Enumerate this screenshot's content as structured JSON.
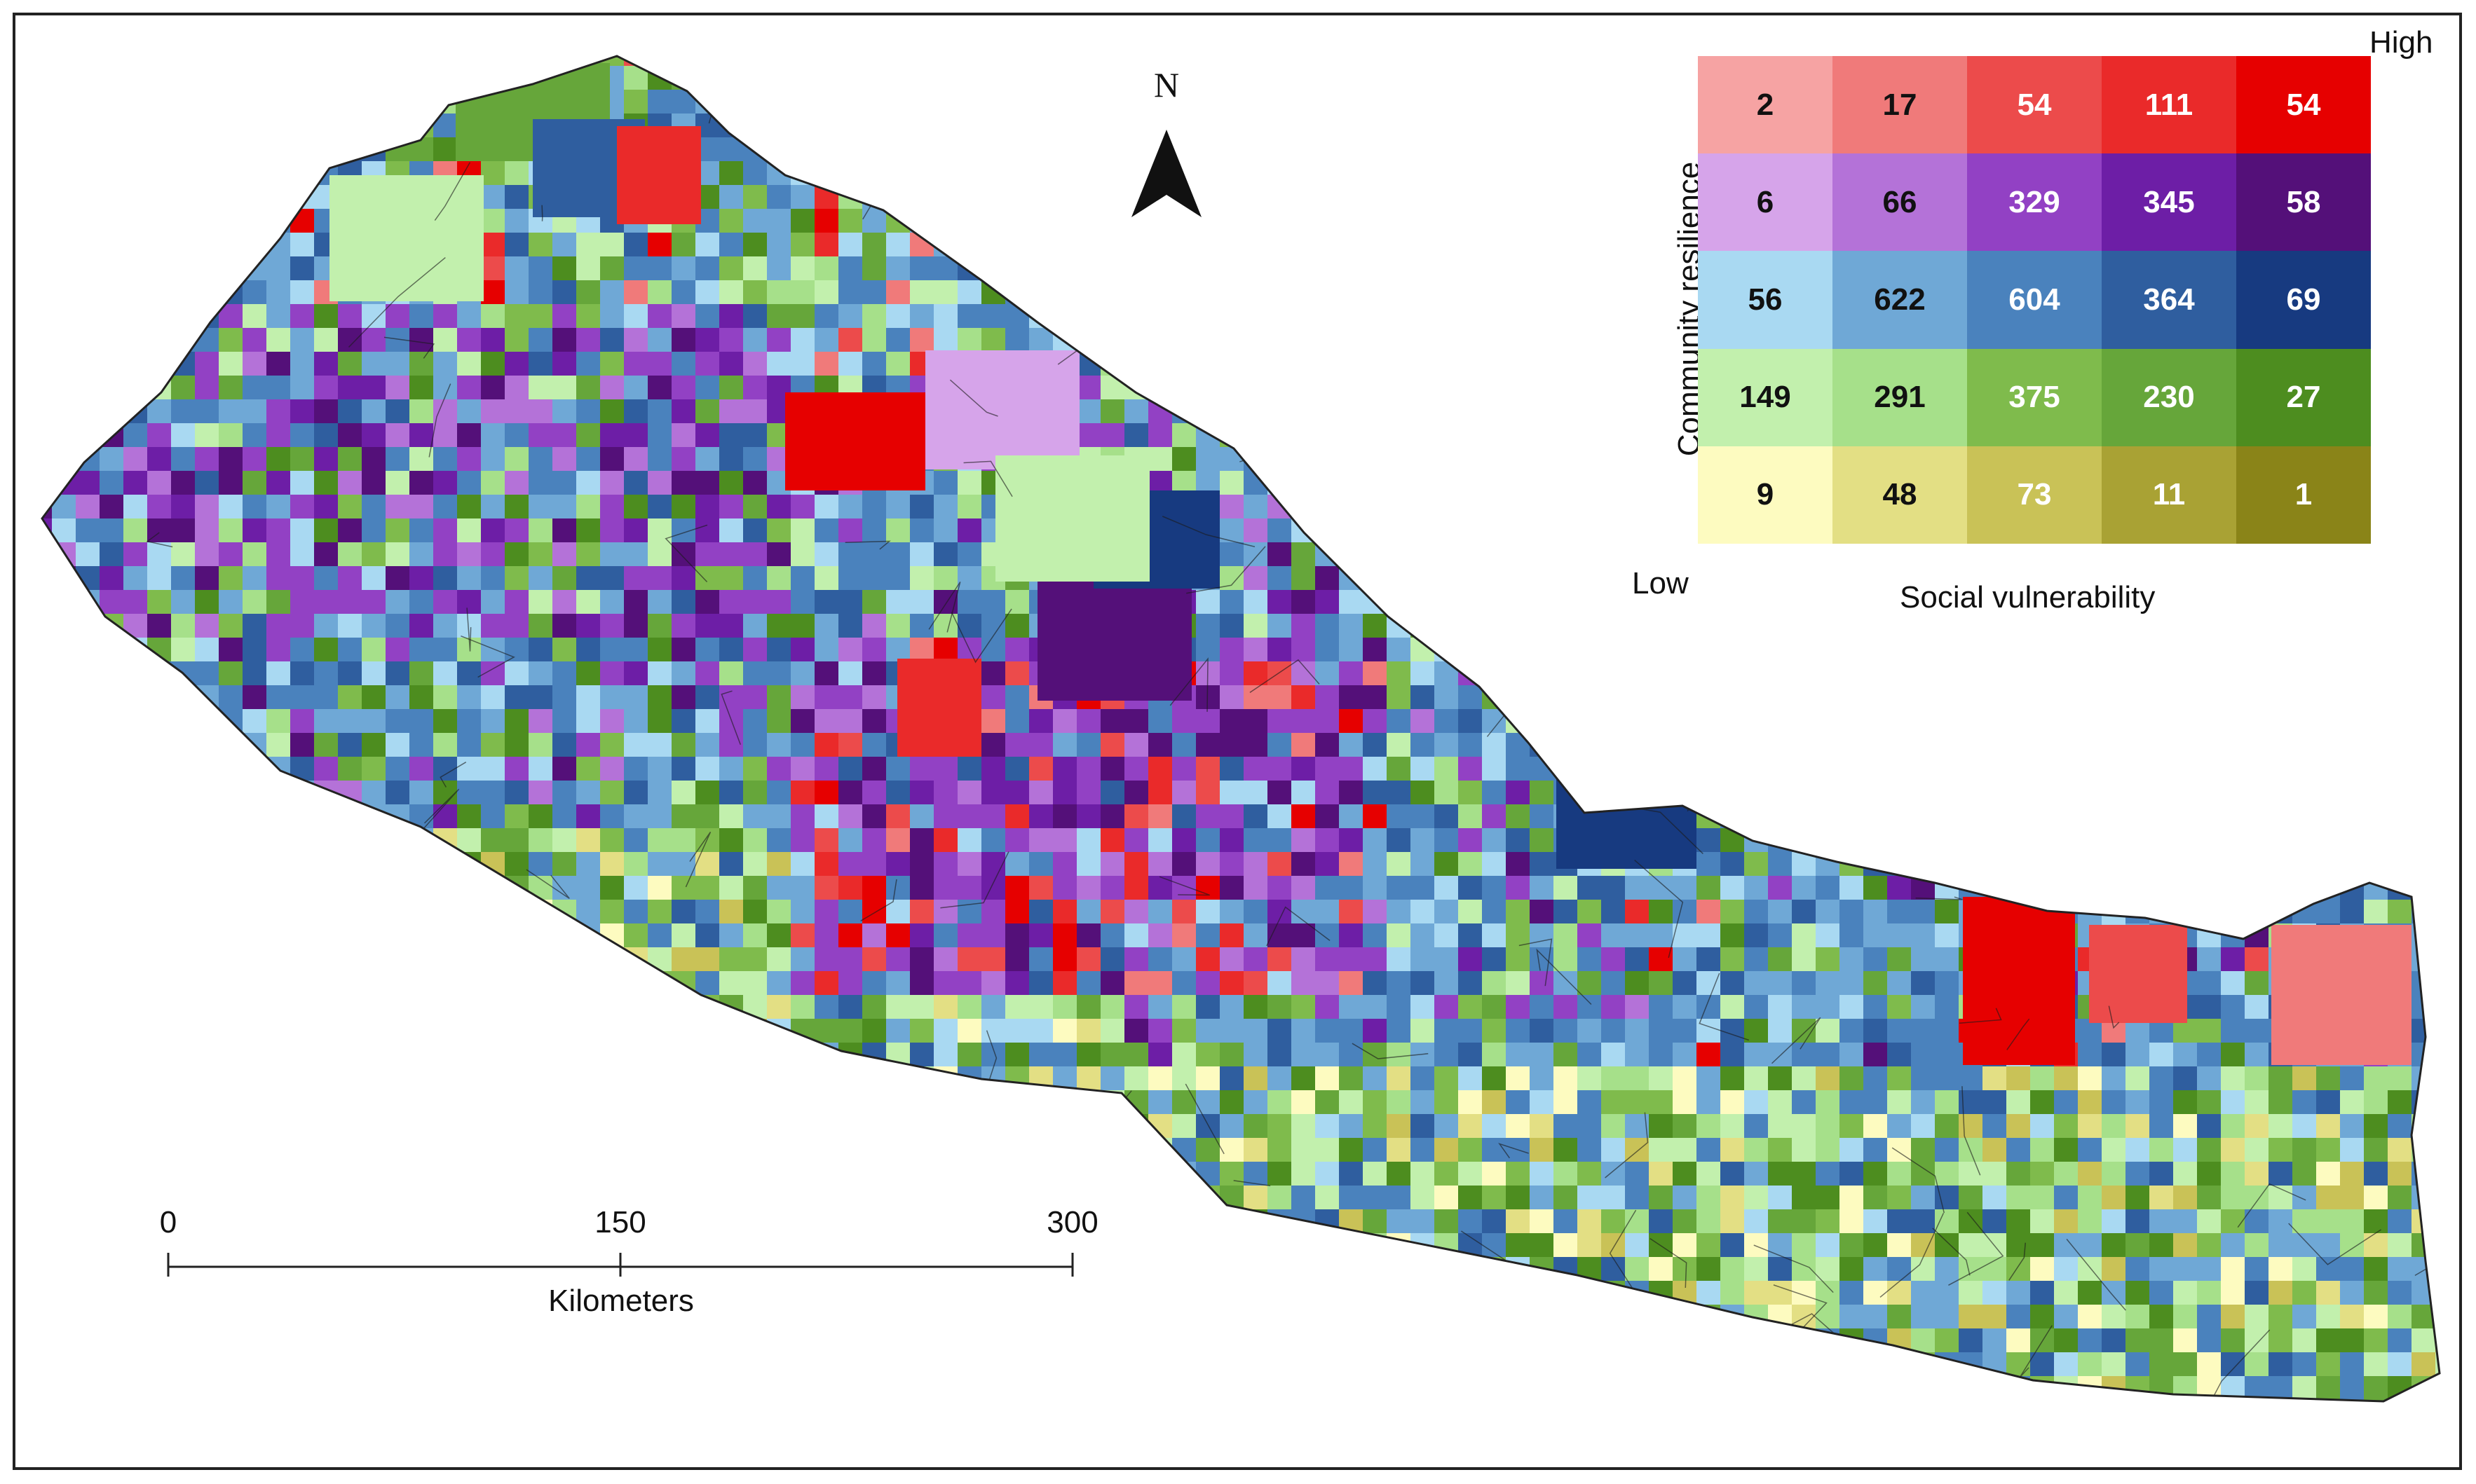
{
  "map": {
    "north_label": "N",
    "scale": {
      "ticks": [
        "0",
        "150",
        "300"
      ],
      "unit": "Kilometers"
    },
    "legend": {
      "high_label": "High",
      "low_label": "Low",
      "x_label": "Social vulnerability",
      "y_label": "Community resilience",
      "rows": [
        {
          "colors": [
            "#f6a3a3",
            "#f07a7a",
            "#ec4b4b",
            "#ea2a2a",
            "#e60000"
          ],
          "text": [
            "#111111",
            "#111111",
            "#ffffff",
            "#ffffff",
            "#ffffff"
          ],
          "values": [
            "2",
            "17",
            "54",
            "111",
            "54"
          ]
        },
        {
          "colors": [
            "#d6a4ea",
            "#b472d8",
            "#9241c4",
            "#6d1ea6",
            "#541079"
          ],
          "text": [
            "#111111",
            "#111111",
            "#ffffff",
            "#ffffff",
            "#ffffff"
          ],
          "values": [
            "6",
            "66",
            "329",
            "345",
            "58"
          ]
        },
        {
          "colors": [
            "#a9d9f2",
            "#6fa8d6",
            "#4a82bd",
            "#2f5e9f",
            "#173a80"
          ],
          "text": [
            "#111111",
            "#111111",
            "#ffffff",
            "#ffffff",
            "#ffffff"
          ],
          "values": [
            "56",
            "622",
            "604",
            "364",
            "69"
          ]
        },
        {
          "colors": [
            "#c2f0ad",
            "#a6e08a",
            "#7fbb4c",
            "#66a63a",
            "#4d8d1f"
          ],
          "text": [
            "#111111",
            "#111111",
            "#ffffff",
            "#ffffff",
            "#ffffff"
          ],
          "values": [
            "149",
            "291",
            "375",
            "230",
            "27"
          ]
        },
        {
          "colors": [
            "#fdfbc0",
            "#e3df84",
            "#c9c257",
            "#a9a234",
            "#8a8418"
          ],
          "text": [
            "#111111",
            "#111111",
            "#ffffff",
            "#ffffff",
            "#ffffff"
          ],
          "values": [
            "9",
            "48",
            "73",
            "11",
            "1"
          ]
        }
      ]
    }
  }
}
